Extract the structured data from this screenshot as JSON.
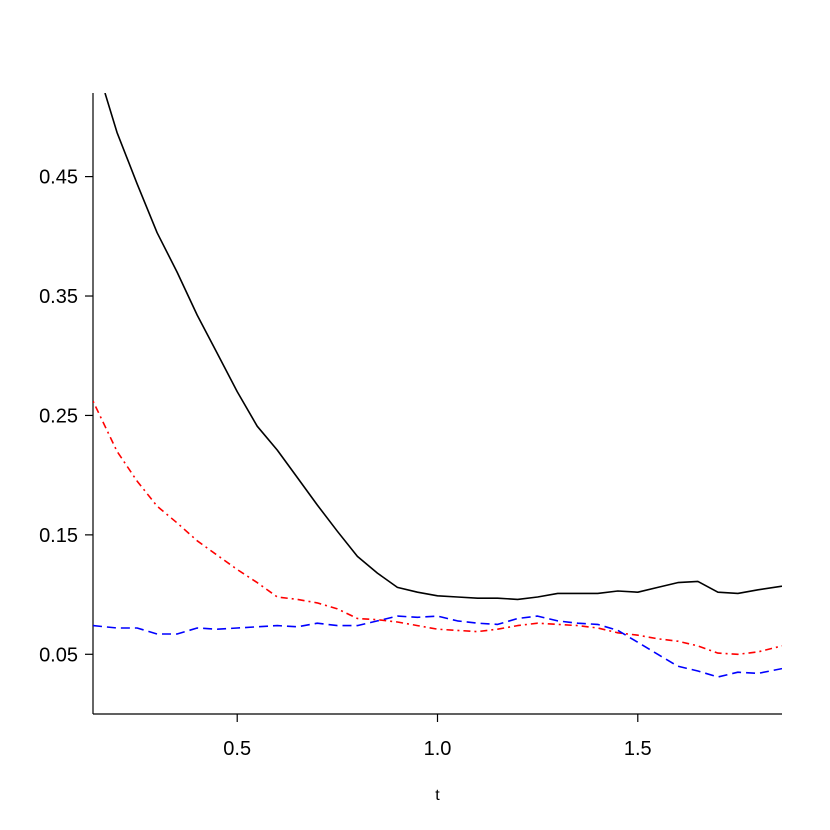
{
  "chart_data": {
    "type": "line",
    "title": "",
    "xlabel": "t",
    "ylabel": "",
    "xlim": [
      0.14,
      1.86
    ],
    "ylim": [
      0.0,
      0.52
    ],
    "xticks": [
      0.5,
      1.0,
      1.5
    ],
    "xtick_labels": [
      "0.5",
      "1.0",
      "1.5"
    ],
    "yticks": [
      0.05,
      0.15,
      0.25,
      0.35,
      0.45
    ],
    "ytick_labels": [
      "0.05",
      "0.15",
      "0.25",
      "0.35",
      "0.45"
    ],
    "grid": false,
    "series": [
      {
        "color": "#000000",
        "linestyle": "solid",
        "x": [
          0.17,
          0.2,
          0.25,
          0.3,
          0.35,
          0.4,
          0.45,
          0.5,
          0.55,
          0.6,
          0.65,
          0.7,
          0.75,
          0.8,
          0.85,
          0.9,
          0.95,
          1.0,
          1.05,
          1.1,
          1.15,
          1.2,
          1.25,
          1.3,
          1.35,
          1.4,
          1.45,
          1.5,
          1.55,
          1.6,
          1.65,
          1.7,
          1.75,
          1.8,
          1.86
        ],
        "y": [
          0.52,
          0.487,
          0.444,
          0.403,
          0.37,
          0.334,
          0.302,
          0.27,
          0.241,
          0.221,
          0.198,
          0.175,
          0.153,
          0.132,
          0.118,
          0.106,
          0.102,
          0.099,
          0.098,
          0.097,
          0.097,
          0.096,
          0.098,
          0.101,
          0.101,
          0.101,
          0.103,
          0.102,
          0.106,
          0.11,
          0.111,
          0.102,
          0.101,
          0.104,
          0.107
        ]
      },
      {
        "color": "#ff0000",
        "linestyle": "dashdot",
        "x": [
          0.14,
          0.2,
          0.25,
          0.3,
          0.35,
          0.4,
          0.45,
          0.5,
          0.55,
          0.6,
          0.65,
          0.7,
          0.75,
          0.8,
          0.85,
          0.9,
          0.95,
          1.0,
          1.05,
          1.1,
          1.15,
          1.2,
          1.25,
          1.3,
          1.35,
          1.4,
          1.45,
          1.5,
          1.55,
          1.6,
          1.65,
          1.7,
          1.75,
          1.8,
          1.86
        ],
        "y": [
          0.262,
          0.22,
          0.195,
          0.174,
          0.16,
          0.145,
          0.133,
          0.121,
          0.11,
          0.098,
          0.096,
          0.093,
          0.088,
          0.08,
          0.079,
          0.077,
          0.074,
          0.071,
          0.07,
          0.069,
          0.071,
          0.074,
          0.076,
          0.075,
          0.074,
          0.072,
          0.068,
          0.066,
          0.063,
          0.061,
          0.057,
          0.051,
          0.05,
          0.052,
          0.057
        ]
      },
      {
        "color": "#0000ff",
        "linestyle": "dashed",
        "x": [
          0.14,
          0.2,
          0.25,
          0.3,
          0.35,
          0.4,
          0.45,
          0.5,
          0.55,
          0.6,
          0.65,
          0.7,
          0.75,
          0.8,
          0.85,
          0.9,
          0.95,
          1.0,
          1.05,
          1.1,
          1.15,
          1.2,
          1.25,
          1.3,
          1.35,
          1.4,
          1.45,
          1.5,
          1.55,
          1.6,
          1.65,
          1.7,
          1.75,
          1.8,
          1.86
        ],
        "y": [
          0.074,
          0.072,
          0.072,
          0.067,
          0.067,
          0.072,
          0.071,
          0.072,
          0.073,
          0.074,
          0.073,
          0.076,
          0.074,
          0.074,
          0.078,
          0.082,
          0.081,
          0.082,
          0.078,
          0.076,
          0.075,
          0.08,
          0.082,
          0.078,
          0.076,
          0.075,
          0.07,
          0.06,
          0.05,
          0.04,
          0.036,
          0.031,
          0.035,
          0.034,
          0.038
        ]
      }
    ]
  }
}
